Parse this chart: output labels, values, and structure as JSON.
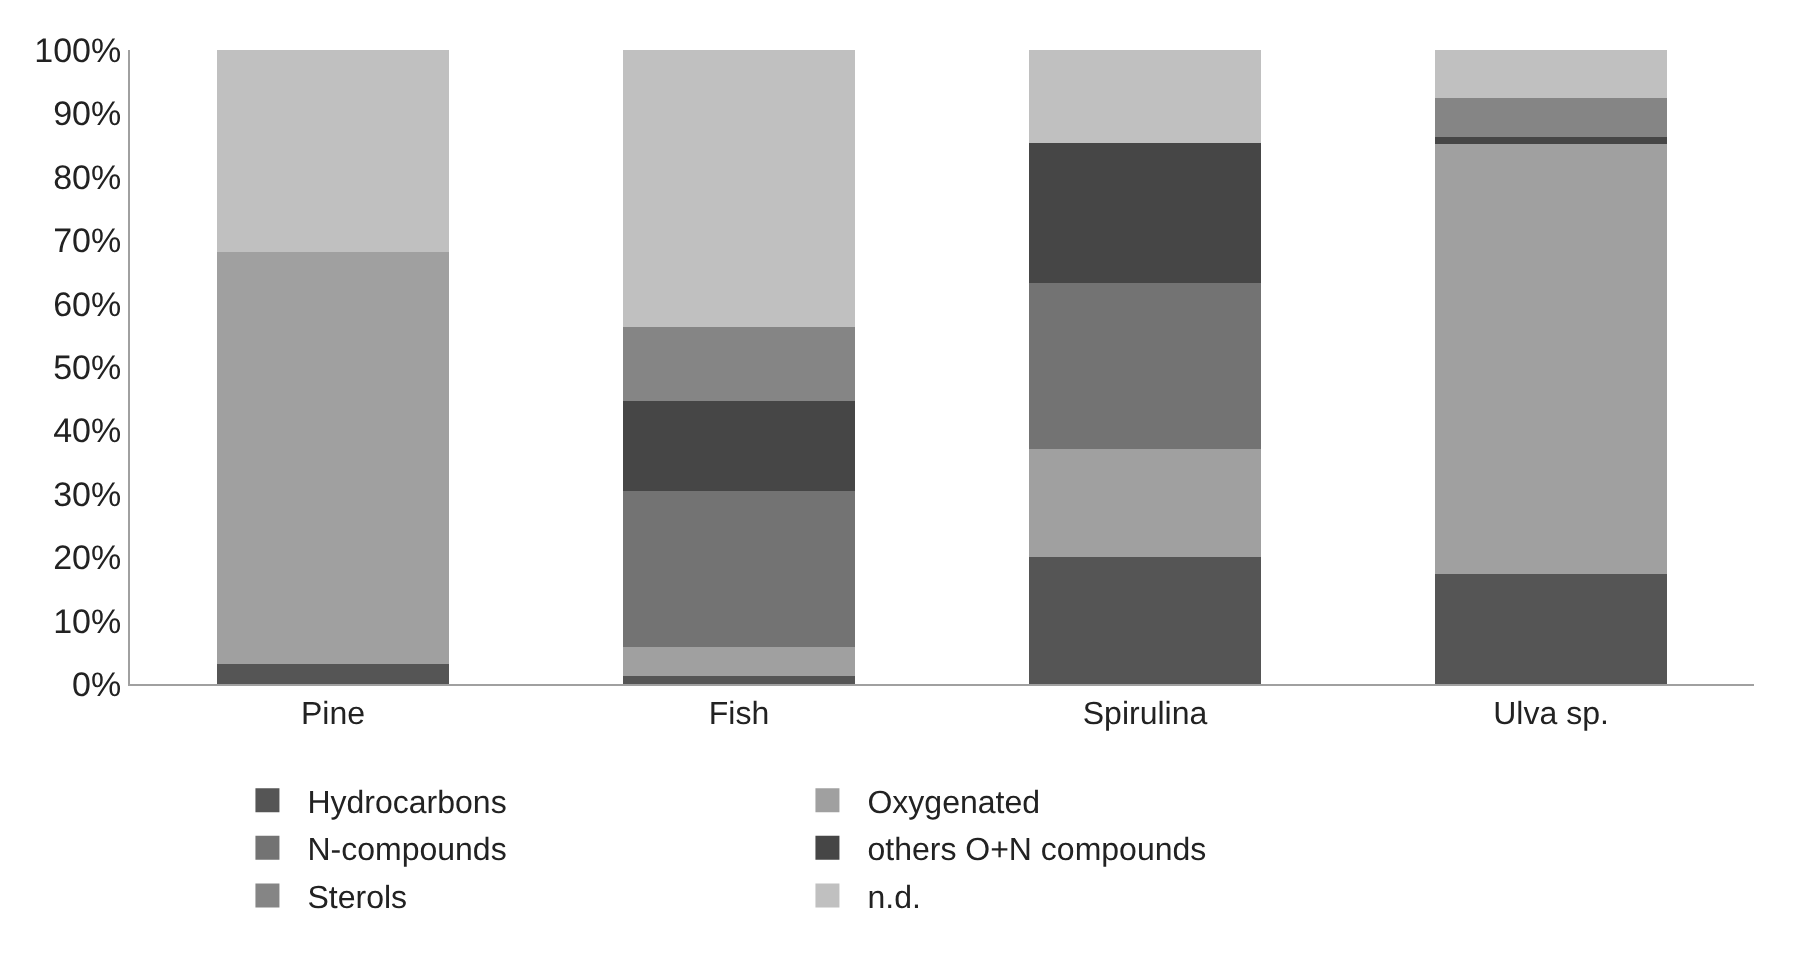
{
  "chart_data": {
    "type": "bar",
    "stacked": true,
    "categories": [
      "Pine",
      "Fish",
      "Spirulina",
      "Ulva sp."
    ],
    "series": [
      {
        "name": "Hydrocarbons",
        "color": "#555555",
        "values": [
          3.1,
          1.2,
          20.1,
          17.4
        ]
      },
      {
        "name": "Oxygenated",
        "color": "#a0a0a0",
        "values": [
          65,
          4.7,
          16.9,
          67.8
        ]
      },
      {
        "name": "N-compounds",
        "color": "#737373",
        "values": [
          0,
          24.6,
          26.2,
          0
        ]
      },
      {
        "name": "others O+N compounds",
        "color": "#464646",
        "values": [
          0,
          14.1,
          22.1,
          1.1
        ]
      },
      {
        "name": "Sterols",
        "color": "#858585",
        "values": [
          0,
          11.7,
          0,
          6.2
        ]
      },
      {
        "name": "n.d.",
        "color": "#c0c0c0",
        "values": [
          31.9,
          43.7,
          14.7,
          7.5
        ]
      }
    ],
    "ylim": [
      0,
      100
    ],
    "yticks": [
      {
        "value": 0,
        "label": "0%"
      },
      {
        "value": 10,
        "label": "10%"
      },
      {
        "value": 20,
        "label": "20%"
      },
      {
        "value": 30,
        "label": "30%"
      },
      {
        "value": 40,
        "label": "40%"
      },
      {
        "value": 50,
        "label": "50%"
      },
      {
        "value": 60,
        "label": "60%"
      },
      {
        "value": 70,
        "label": "70%"
      },
      {
        "value": 80,
        "label": "80%"
      },
      {
        "value": 90,
        "label": "90%"
      },
      {
        "value": 100,
        "label": "100%"
      }
    ],
    "legend": "bottom"
  }
}
